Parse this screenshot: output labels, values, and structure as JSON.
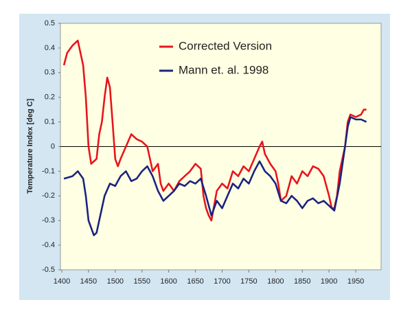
{
  "chart_data": {
    "type": "line",
    "y_label": "Temperature Index [deg C]",
    "xlim": [
      1400,
      2000
    ],
    "xticks": [
      1400,
      1450,
      1500,
      1550,
      1600,
      1650,
      1700,
      1750,
      1800,
      1850,
      1900,
      1950
    ],
    "ylim": [
      -0.5,
      0.5
    ],
    "yticks": [
      -0.5,
      -0.4,
      -0.3,
      -0.2,
      -0.1,
      0,
      0.1,
      0.2,
      0.3,
      0.4,
      0.5
    ],
    "zero_line": true,
    "grid": false,
    "legend": "top",
    "series": [
      {
        "name": "Corrected Version",
        "color": "#e8141c",
        "x": [
          1404,
          1410,
          1420,
          1430,
          1440,
          1445,
          1450,
          1455,
          1460,
          1465,
          1470,
          1475,
          1480,
          1485,
          1490,
          1495,
          1500,
          1505,
          1510,
          1520,
          1530,
          1540,
          1550,
          1560,
          1565,
          1570,
          1580,
          1585,
          1590,
          1600,
          1610,
          1620,
          1630,
          1640,
          1650,
          1660,
          1665,
          1670,
          1675,
          1680,
          1690,
          1700,
          1710,
          1720,
          1730,
          1740,
          1750,
          1760,
          1770,
          1775,
          1780,
          1790,
          1800,
          1805,
          1810,
          1820,
          1830,
          1840,
          1850,
          1860,
          1870,
          1880,
          1890,
          1900,
          1905,
          1910,
          1915,
          1920,
          1930,
          1935,
          1940,
          1950,
          1960,
          1965,
          1970
        ],
        "values": [
          0.33,
          0.38,
          0.41,
          0.43,
          0.33,
          0.2,
          0.0,
          -0.07,
          -0.06,
          -0.05,
          0.05,
          0.1,
          0.2,
          0.28,
          0.24,
          0.1,
          -0.05,
          -0.08,
          -0.05,
          0.0,
          0.05,
          0.03,
          0.02,
          0.0,
          -0.05,
          -0.1,
          -0.07,
          -0.15,
          -0.18,
          -0.15,
          -0.18,
          -0.14,
          -0.12,
          -0.1,
          -0.07,
          -0.09,
          -0.2,
          -0.25,
          -0.28,
          -0.3,
          -0.18,
          -0.15,
          -0.17,
          -0.1,
          -0.12,
          -0.08,
          -0.1,
          -0.05,
          0.0,
          0.02,
          -0.03,
          -0.07,
          -0.1,
          -0.15,
          -0.22,
          -0.2,
          -0.12,
          -0.15,
          -0.1,
          -0.12,
          -0.08,
          -0.09,
          -0.12,
          -0.2,
          -0.25,
          -0.25,
          -0.2,
          -0.1,
          0.0,
          0.1,
          0.13,
          0.12,
          0.13,
          0.15,
          0.15
        ]
      },
      {
        "name": "Mann et. al. 1998",
        "color": "#1a237e",
        "x": [
          1404,
          1420,
          1430,
          1440,
          1445,
          1450,
          1460,
          1465,
          1470,
          1480,
          1490,
          1500,
          1510,
          1520,
          1530,
          1540,
          1550,
          1560,
          1570,
          1580,
          1590,
          1600,
          1610,
          1620,
          1630,
          1640,
          1650,
          1660,
          1670,
          1680,
          1690,
          1700,
          1710,
          1720,
          1730,
          1740,
          1750,
          1760,
          1770,
          1780,
          1790,
          1800,
          1810,
          1820,
          1830,
          1840,
          1850,
          1860,
          1870,
          1880,
          1890,
          1900,
          1910,
          1920,
          1930,
          1935,
          1940,
          1950,
          1960,
          1970
        ],
        "values": [
          -0.13,
          -0.12,
          -0.1,
          -0.13,
          -0.2,
          -0.3,
          -0.36,
          -0.35,
          -0.3,
          -0.2,
          -0.15,
          -0.16,
          -0.12,
          -0.1,
          -0.14,
          -0.13,
          -0.1,
          -0.08,
          -0.12,
          -0.18,
          -0.22,
          -0.2,
          -0.18,
          -0.15,
          -0.16,
          -0.14,
          -0.15,
          -0.13,
          -0.2,
          -0.28,
          -0.22,
          -0.25,
          -0.2,
          -0.15,
          -0.17,
          -0.13,
          -0.15,
          -0.1,
          -0.06,
          -0.1,
          -0.12,
          -0.15,
          -0.22,
          -0.23,
          -0.2,
          -0.22,
          -0.25,
          -0.22,
          -0.21,
          -0.23,
          -0.22,
          -0.24,
          -0.26,
          -0.15,
          0.0,
          0.08,
          0.12,
          0.11,
          0.11,
          0.1
        ]
      }
    ]
  }
}
